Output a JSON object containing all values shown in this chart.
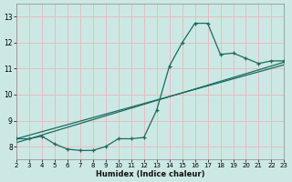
{
  "bg_color": "#cce8e5",
  "grid_color": "#e8b8b8",
  "line_color": "#1a6b5e",
  "xlabel": "Humidex (Indice chaleur)",
  "xlim": [
    2,
    23
  ],
  "ylim": [
    7.5,
    13.5
  ],
  "yticks": [
    8,
    9,
    10,
    11,
    12,
    13
  ],
  "xticks": [
    2,
    3,
    4,
    5,
    6,
    7,
    8,
    9,
    10,
    11,
    12,
    13,
    14,
    15,
    16,
    17,
    18,
    19,
    20,
    21,
    22,
    23
  ],
  "curve1_x": [
    2,
    3,
    4,
    5,
    6,
    7,
    8,
    9,
    10,
    11,
    12,
    13,
    14,
    15,
    16,
    17,
    18,
    19,
    20,
    21,
    22,
    23
  ],
  "curve1_y": [
    8.3,
    8.3,
    8.4,
    8.1,
    7.9,
    7.85,
    7.85,
    8.0,
    8.3,
    8.3,
    8.35,
    9.4,
    11.1,
    12.0,
    12.75,
    12.75,
    11.55,
    11.6,
    11.4,
    11.2,
    11.3,
    11.3
  ],
  "line2_x": [
    2,
    23
  ],
  "line2_y": [
    8.15,
    11.25
  ],
  "line3_x": [
    2,
    23
  ],
  "line3_y": [
    8.3,
    11.15
  ]
}
